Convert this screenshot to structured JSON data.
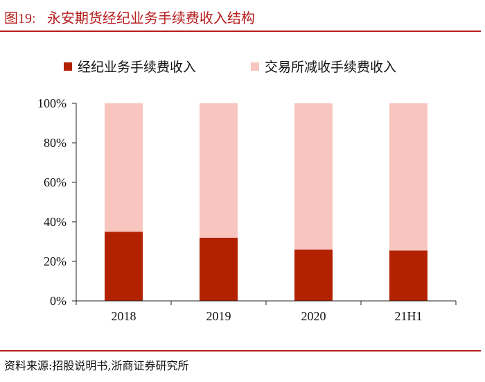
{
  "header": {
    "figure_number": "图19:",
    "title": "永安期货经纪业务手续费收入结构"
  },
  "footer": {
    "source": "资料来源:招股说明书,浙商证券研究所"
  },
  "colors": {
    "brand_red": "#b71c1c",
    "series_dark": "#b22200",
    "series_light": "#f8c6be"
  },
  "chart_data": {
    "type": "bar",
    "stacked": true,
    "categories": [
      "2018",
      "2019",
      "2020",
      "21H1"
    ],
    "series": [
      {
        "name": "经纪业务手续费收入",
        "values": [
          35,
          32,
          26,
          25.5
        ],
        "color": "#b22200"
      },
      {
        "name": "交易所减收手续费收入",
        "values": [
          65,
          68,
          74,
          74.5
        ],
        "color": "#f8c6be"
      }
    ],
    "ylim": [
      0,
      100
    ],
    "y_ticks": [
      "0%",
      "20%",
      "40%",
      "60%",
      "80%",
      "100%"
    ],
    "y_tick_values": [
      0,
      20,
      40,
      60,
      80,
      100
    ],
    "grid": false,
    "legend_position": "top"
  }
}
